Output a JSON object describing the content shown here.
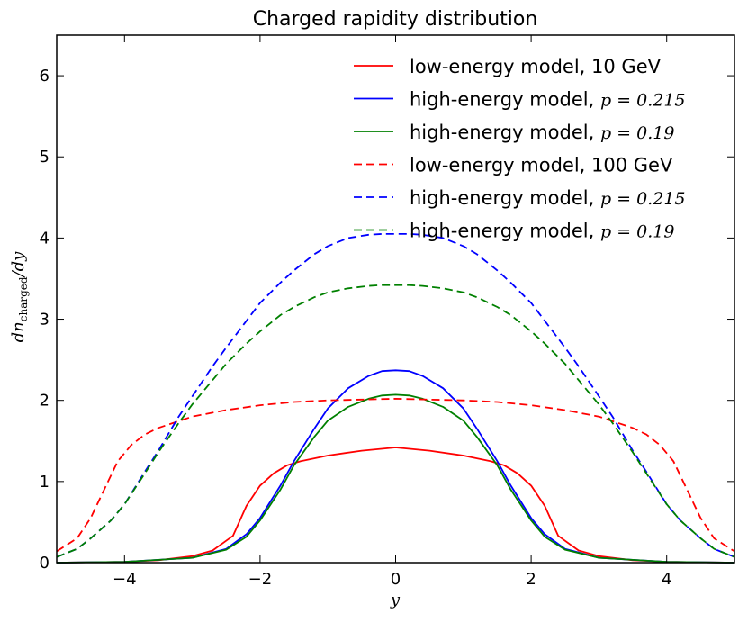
{
  "chart_data": {
    "type": "line",
    "title": "Charged rapidity distribution",
    "xlabel": "y",
    "ylabel_main": "dn",
    "ylabel_sub": "charged",
    "ylabel_tail": "/dy",
    "xlim": [
      -5,
      5
    ],
    "ylim": [
      0,
      6.5
    ],
    "xticks": [
      {
        "value": -4,
        "label": "−4"
      },
      {
        "value": -2,
        "label": "−2"
      },
      {
        "value": 0,
        "label": "0"
      },
      {
        "value": 2,
        "label": "2"
      },
      {
        "value": 4,
        "label": "4"
      }
    ],
    "yticks": [
      {
        "value": 0,
        "label": "0"
      },
      {
        "value": 1,
        "label": "1"
      },
      {
        "value": 2,
        "label": "2"
      },
      {
        "value": 3,
        "label": "3"
      },
      {
        "value": 4,
        "label": "4"
      },
      {
        "value": 5,
        "label": "5"
      },
      {
        "value": 6,
        "label": "6"
      }
    ],
    "legend_position": "top-right",
    "series": [
      {
        "name": "low-energy model, 10 GeV",
        "label_text": "low-energy model, 10 GeV",
        "label_math": "",
        "color": "#ff0000",
        "dashed": false,
        "points": [
          [
            -5,
            0.0
          ],
          [
            -4,
            0.01
          ],
          [
            -3.5,
            0.03
          ],
          [
            -3,
            0.08
          ],
          [
            -2.7,
            0.15
          ],
          [
            -2.4,
            0.33
          ],
          [
            -2.2,
            0.7
          ],
          [
            -2,
            0.95
          ],
          [
            -1.8,
            1.1
          ],
          [
            -1.6,
            1.2
          ],
          [
            -1.4,
            1.25
          ],
          [
            -1,
            1.32
          ],
          [
            -0.5,
            1.38
          ],
          [
            0,
            1.42
          ],
          [
            0.5,
            1.38
          ],
          [
            1,
            1.32
          ],
          [
            1.4,
            1.25
          ],
          [
            1.6,
            1.2
          ],
          [
            1.8,
            1.1
          ],
          [
            2,
            0.95
          ],
          [
            2.2,
            0.7
          ],
          [
            2.4,
            0.33
          ],
          [
            2.7,
            0.15
          ],
          [
            3,
            0.08
          ],
          [
            3.5,
            0.03
          ],
          [
            4,
            0.01
          ],
          [
            5,
            0.0
          ]
        ]
      },
      {
        "name": "high-energy model, p=0.215",
        "label_text": "high-energy model, ",
        "label_math": "p = 0.215",
        "color": "#0000ff",
        "dashed": false,
        "points": [
          [
            -5,
            0.0
          ],
          [
            -4,
            0.01
          ],
          [
            -3,
            0.06
          ],
          [
            -2.5,
            0.17
          ],
          [
            -2.2,
            0.35
          ],
          [
            -2,
            0.55
          ],
          [
            -1.7,
            0.95
          ],
          [
            -1.5,
            1.25
          ],
          [
            -1.2,
            1.65
          ],
          [
            -1,
            1.9
          ],
          [
            -0.7,
            2.15
          ],
          [
            -0.4,
            2.3
          ],
          [
            -0.2,
            2.36
          ],
          [
            0,
            2.37
          ],
          [
            0.2,
            2.36
          ],
          [
            0.4,
            2.3
          ],
          [
            0.7,
            2.15
          ],
          [
            1,
            1.9
          ],
          [
            1.2,
            1.65
          ],
          [
            1.5,
            1.25
          ],
          [
            1.7,
            0.95
          ],
          [
            2,
            0.55
          ],
          [
            2.2,
            0.35
          ],
          [
            2.5,
            0.17
          ],
          [
            3,
            0.06
          ],
          [
            4,
            0.01
          ],
          [
            5,
            0.0
          ]
        ]
      },
      {
        "name": "high-energy model, p=0.19",
        "label_text": "high-energy model, ",
        "label_math": "p = 0.19",
        "color": "#008000",
        "dashed": false,
        "points": [
          [
            -5,
            0.0
          ],
          [
            -4,
            0.01
          ],
          [
            -3,
            0.06
          ],
          [
            -2.5,
            0.16
          ],
          [
            -2.2,
            0.32
          ],
          [
            -2,
            0.52
          ],
          [
            -1.7,
            0.9
          ],
          [
            -1.5,
            1.2
          ],
          [
            -1.2,
            1.55
          ],
          [
            -1,
            1.75
          ],
          [
            -0.7,
            1.92
          ],
          [
            -0.4,
            2.02
          ],
          [
            -0.2,
            2.06
          ],
          [
            0,
            2.07
          ],
          [
            0.2,
            2.06
          ],
          [
            0.4,
            2.02
          ],
          [
            0.7,
            1.92
          ],
          [
            1,
            1.75
          ],
          [
            1.2,
            1.55
          ],
          [
            1.5,
            1.2
          ],
          [
            1.7,
            0.9
          ],
          [
            2,
            0.52
          ],
          [
            2.2,
            0.32
          ],
          [
            2.5,
            0.16
          ],
          [
            3,
            0.06
          ],
          [
            4,
            0.01
          ],
          [
            5,
            0.0
          ]
        ]
      },
      {
        "name": "low-energy model, 100 GeV",
        "label_text": "low-energy model, 100 GeV",
        "label_math": "",
        "color": "#ff0000",
        "dashed": true,
        "points": [
          [
            -5,
            0.14
          ],
          [
            -4.7,
            0.3
          ],
          [
            -4.5,
            0.55
          ],
          [
            -4.3,
            0.9
          ],
          [
            -4.1,
            1.25
          ],
          [
            -3.9,
            1.45
          ],
          [
            -3.7,
            1.58
          ],
          [
            -3.5,
            1.66
          ],
          [
            -3,
            1.8
          ],
          [
            -2.5,
            1.88
          ],
          [
            -2,
            1.94
          ],
          [
            -1.5,
            1.98
          ],
          [
            -1,
            2.0
          ],
          [
            -0.5,
            2.01
          ],
          [
            0,
            2.02
          ],
          [
            0.5,
            2.01
          ],
          [
            1,
            2.0
          ],
          [
            1.5,
            1.98
          ],
          [
            2,
            1.94
          ],
          [
            2.5,
            1.88
          ],
          [
            3,
            1.8
          ],
          [
            3.5,
            1.66
          ],
          [
            3.7,
            1.58
          ],
          [
            3.9,
            1.45
          ],
          [
            4.1,
            1.25
          ],
          [
            4.3,
            0.9
          ],
          [
            4.5,
            0.55
          ],
          [
            4.7,
            0.3
          ],
          [
            5,
            0.14
          ]
        ]
      },
      {
        "name": "high-energy model, p=0.215",
        "label_text": "high-energy model, ",
        "label_math": "p = 0.215",
        "color": "#0000ff",
        "dashed": true,
        "points": [
          [
            -5,
            0.07
          ],
          [
            -4.7,
            0.17
          ],
          [
            -4.5,
            0.3
          ],
          [
            -4.2,
            0.52
          ],
          [
            -4,
            0.72
          ],
          [
            -3.7,
            1.12
          ],
          [
            -3.5,
            1.38
          ],
          [
            -3.2,
            1.8
          ],
          [
            -3,
            2.05
          ],
          [
            -2.7,
            2.42
          ],
          [
            -2.5,
            2.65
          ],
          [
            -2.2,
            2.98
          ],
          [
            -2,
            3.2
          ],
          [
            -1.7,
            3.45
          ],
          [
            -1.5,
            3.6
          ],
          [
            -1.2,
            3.8
          ],
          [
            -1,
            3.9
          ],
          [
            -0.7,
            4.0
          ],
          [
            -0.4,
            4.04
          ],
          [
            -0.2,
            4.05
          ],
          [
            0,
            4.05
          ],
          [
            0.2,
            4.05
          ],
          [
            0.4,
            4.04
          ],
          [
            0.7,
            4.0
          ],
          [
            1,
            3.9
          ],
          [
            1.2,
            3.8
          ],
          [
            1.5,
            3.6
          ],
          [
            1.7,
            3.45
          ],
          [
            2,
            3.2
          ],
          [
            2.2,
            2.98
          ],
          [
            2.5,
            2.65
          ],
          [
            2.7,
            2.42
          ],
          [
            3,
            2.05
          ],
          [
            3.2,
            1.8
          ],
          [
            3.5,
            1.38
          ],
          [
            3.7,
            1.12
          ],
          [
            4,
            0.72
          ],
          [
            4.2,
            0.52
          ],
          [
            4.5,
            0.3
          ],
          [
            4.7,
            0.17
          ],
          [
            5,
            0.07
          ]
        ]
      },
      {
        "name": "high-energy model, p=0.19",
        "label_text": "high-energy model, ",
        "label_math": "p = 0.19",
        "color": "#008000",
        "dashed": true,
        "points": [
          [
            -5,
            0.07
          ],
          [
            -4.7,
            0.17
          ],
          [
            -4.5,
            0.3
          ],
          [
            -4.2,
            0.52
          ],
          [
            -4,
            0.72
          ],
          [
            -3.7,
            1.1
          ],
          [
            -3.5,
            1.36
          ],
          [
            -3.2,
            1.72
          ],
          [
            -3,
            1.95
          ],
          [
            -2.7,
            2.25
          ],
          [
            -2.5,
            2.45
          ],
          [
            -2.2,
            2.7
          ],
          [
            -2,
            2.85
          ],
          [
            -1.7,
            3.05
          ],
          [
            -1.5,
            3.15
          ],
          [
            -1.2,
            3.27
          ],
          [
            -1,
            3.33
          ],
          [
            -0.7,
            3.38
          ],
          [
            -0.4,
            3.41
          ],
          [
            -0.2,
            3.42
          ],
          [
            0,
            3.42
          ],
          [
            0.2,
            3.42
          ],
          [
            0.4,
            3.41
          ],
          [
            0.7,
            3.38
          ],
          [
            1,
            3.33
          ],
          [
            1.2,
            3.27
          ],
          [
            1.5,
            3.15
          ],
          [
            1.7,
            3.05
          ],
          [
            2,
            2.85
          ],
          [
            2.2,
            2.7
          ],
          [
            2.5,
            2.45
          ],
          [
            2.7,
            2.25
          ],
          [
            3,
            1.95
          ],
          [
            3.2,
            1.72
          ],
          [
            3.5,
            1.36
          ],
          [
            3.7,
            1.1
          ],
          [
            4,
            0.72
          ],
          [
            4.2,
            0.52
          ],
          [
            4.5,
            0.3
          ],
          [
            4.7,
            0.17
          ],
          [
            5,
            0.07
          ]
        ]
      }
    ]
  }
}
